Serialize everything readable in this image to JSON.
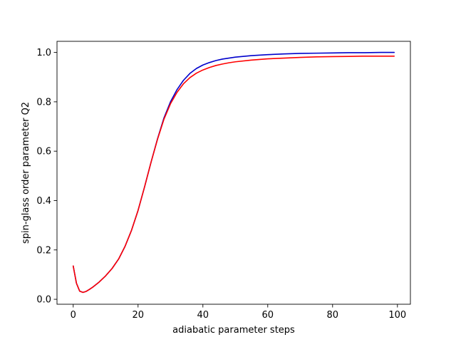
{
  "chart_data": {
    "type": "line",
    "title": "",
    "xlabel": "adiabatic parameter steps",
    "ylabel": "spin-glass order parameter Q2",
    "xlim": [
      -5,
      104
    ],
    "ylim": [
      -0.02,
      1.045
    ],
    "xticks": [
      0,
      20,
      40,
      60,
      80,
      100
    ],
    "xtick_labels": [
      "0",
      "20",
      "40",
      "60",
      "80",
      "100"
    ],
    "yticks": [
      0.0,
      0.2,
      0.4,
      0.6,
      0.8,
      1.0
    ],
    "ytick_labels": [
      "0.0",
      "0.2",
      "0.4",
      "0.6",
      "0.8",
      "1.0"
    ],
    "grid": false,
    "legend": "none",
    "series": [
      {
        "color": "#0000cc",
        "x": [
          0,
          1,
          2,
          3,
          4,
          5,
          6,
          8,
          10,
          12,
          14,
          16,
          18,
          20,
          22,
          24,
          26,
          28,
          30,
          32,
          34,
          36,
          38,
          40,
          42,
          44,
          46,
          48,
          50,
          55,
          60,
          65,
          70,
          75,
          80,
          85,
          90,
          95,
          99
        ],
        "y": [
          0.135,
          0.065,
          0.033,
          0.028,
          0.032,
          0.04,
          0.049,
          0.07,
          0.095,
          0.125,
          0.163,
          0.215,
          0.28,
          0.36,
          0.455,
          0.555,
          0.65,
          0.735,
          0.8,
          0.849,
          0.887,
          0.915,
          0.935,
          0.949,
          0.959,
          0.967,
          0.973,
          0.977,
          0.981,
          0.987,
          0.991,
          0.994,
          0.996,
          0.997,
          0.998,
          0.999,
          0.999,
          1.0,
          1.0
        ]
      },
      {
        "color": "#ff0000",
        "x": [
          0,
          1,
          2,
          3,
          4,
          5,
          6,
          8,
          10,
          12,
          14,
          16,
          18,
          20,
          22,
          24,
          26,
          28,
          30,
          32,
          34,
          36,
          38,
          40,
          42,
          44,
          46,
          48,
          50,
          55,
          60,
          65,
          70,
          75,
          80,
          85,
          90,
          95,
          99
        ],
        "y": [
          0.135,
          0.065,
          0.033,
          0.028,
          0.032,
          0.04,
          0.049,
          0.07,
          0.095,
          0.125,
          0.163,
          0.215,
          0.28,
          0.36,
          0.455,
          0.555,
          0.648,
          0.73,
          0.792,
          0.838,
          0.873,
          0.898,
          0.916,
          0.929,
          0.939,
          0.947,
          0.953,
          0.958,
          0.962,
          0.969,
          0.974,
          0.977,
          0.98,
          0.982,
          0.983,
          0.984,
          0.985,
          0.985,
          0.985
        ]
      }
    ]
  }
}
